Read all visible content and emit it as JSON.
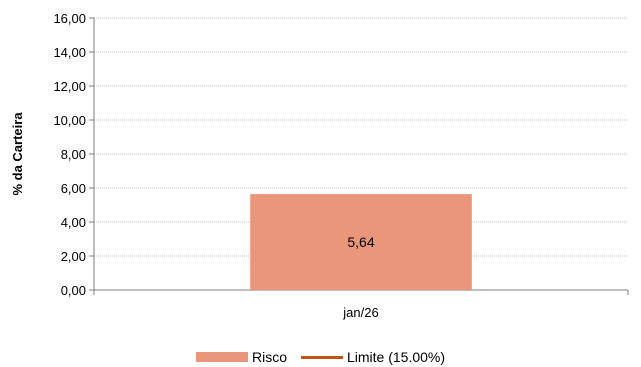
{
  "chart_data": {
    "type": "bar",
    "categories": [
      "jan/26"
    ],
    "series": [
      {
        "name": "Risco",
        "values": [
          5.64
        ],
        "color": "#E9967A"
      }
    ],
    "value_labels": [
      "5,64"
    ],
    "limit_line": {
      "name": "Limite (15.00%)",
      "color": "#C0561A"
    },
    "ylabel": "% da Carteira",
    "ylim": [
      0,
      16
    ],
    "yticks": [
      0,
      2,
      4,
      6,
      8,
      10,
      12,
      14,
      16
    ],
    "ytick_labels": [
      "0,00",
      "2,00",
      "4,00",
      "6,00",
      "8,00",
      "10,00",
      "12,00",
      "14,00",
      "16,00"
    ],
    "grid": "horizontal dotted",
    "legend_position": "bottom"
  }
}
